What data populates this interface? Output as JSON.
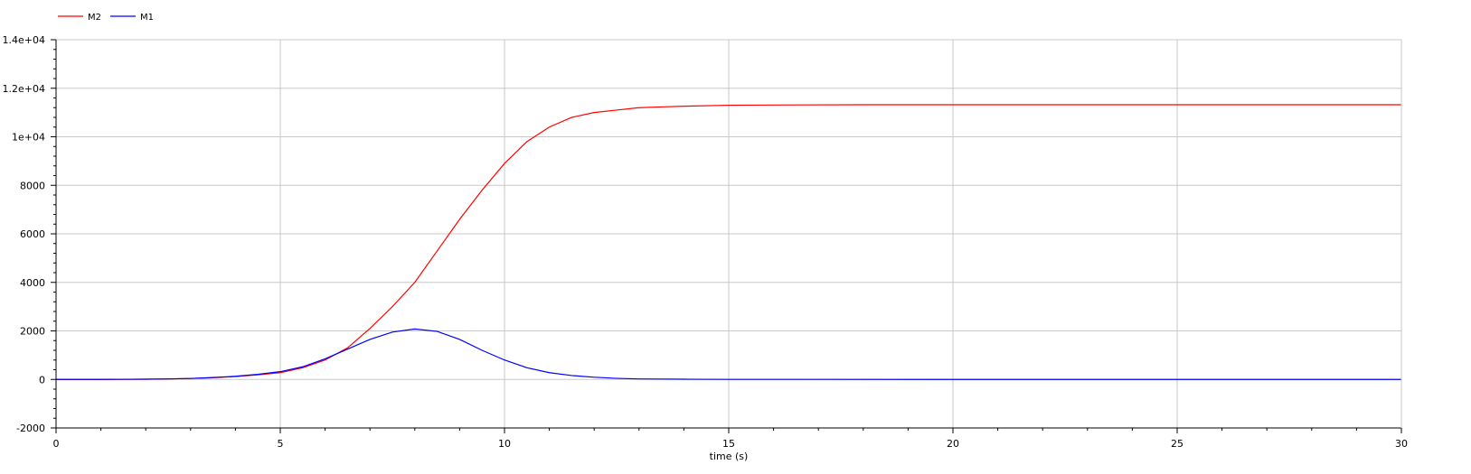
{
  "chart_data": {
    "type": "line",
    "title": "",
    "xlabel": "time (s)",
    "ylabel": "",
    "xlim": [
      0,
      30
    ],
    "ylim": [
      -2000,
      14000
    ],
    "grid": true,
    "legend_position": "top-left",
    "x_ticks": [
      0,
      5,
      10,
      15,
      20,
      25,
      30
    ],
    "x_tick_labels": [
      "0",
      "5",
      "10",
      "15",
      "20",
      "25",
      "30"
    ],
    "y_ticks": [
      -2000,
      0,
      2000,
      4000,
      6000,
      8000,
      10000,
      12000,
      14000
    ],
    "y_tick_labels": [
      "-2000",
      "0",
      "2000",
      "4000",
      "6000",
      "8000",
      "1e+04",
      "1.2e+04",
      "1.4e+04"
    ],
    "series": [
      {
        "name": "M2",
        "color": "#ff0000",
        "x": [
          0,
          1,
          2,
          2.5,
          3,
          3.5,
          4,
          4.5,
          5,
          5.5,
          6,
          6.5,
          7,
          7.5,
          8,
          8.5,
          9,
          9.5,
          10,
          10.5,
          11,
          11.5,
          12,
          12.5,
          13,
          13.5,
          14,
          15,
          16,
          18,
          20,
          22,
          25,
          28,
          30
        ],
        "y": [
          0,
          0,
          10,
          20,
          40,
          70,
          120,
          190,
          280,
          480,
          800,
          1300,
          2100,
          3000,
          4000,
          5300,
          6600,
          7800,
          8900,
          9800,
          10400,
          10800,
          11000,
          11100,
          11200,
          11230,
          11260,
          11300,
          11310,
          11320,
          11320,
          11320,
          11320,
          11320,
          11320
        ]
      },
      {
        "name": "M1",
        "color": "#0000ff",
        "x": [
          0,
          1,
          2,
          2.5,
          3,
          3.5,
          4,
          4.5,
          5,
          5.5,
          6,
          6.5,
          7,
          7.5,
          8,
          8.5,
          9,
          9.5,
          10,
          10.5,
          11,
          11.5,
          12,
          12.5,
          13,
          14,
          15,
          20,
          25,
          30
        ],
        "y": [
          0,
          0,
          10,
          20,
          40,
          80,
          130,
          210,
          320,
          520,
          850,
          1250,
          1650,
          1950,
          2080,
          1980,
          1650,
          1200,
          800,
          480,
          280,
          160,
          90,
          45,
          20,
          8,
          3,
          0,
          0,
          0
        ]
      }
    ]
  }
}
